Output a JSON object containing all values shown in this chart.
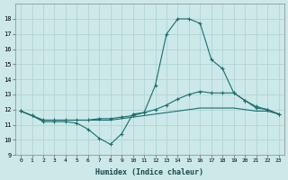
{
  "xlabel": "Humidex (Indice chaleur)",
  "background_color": "#cce8e8",
  "grid_color": "#b0d4d4",
  "line_color": "#1a6e6e",
  "x_values": [
    0,
    1,
    2,
    3,
    4,
    5,
    6,
    7,
    8,
    9,
    10,
    11,
    12,
    13,
    14,
    15,
    16,
    17,
    18,
    19,
    20,
    21,
    22,
    23
  ],
  "series1": [
    11.9,
    11.6,
    11.2,
    11.2,
    11.2,
    11.1,
    10.7,
    10.1,
    9.7,
    10.4,
    11.7,
    11.8,
    13.6,
    17.0,
    18.0,
    18.0,
    17.7,
    15.3,
    14.7,
    13.1,
    12.6,
    12.1,
    12.0,
    11.7
  ],
  "series2": [
    11.9,
    11.6,
    11.3,
    11.3,
    11.3,
    11.3,
    11.3,
    11.4,
    11.4,
    11.5,
    11.6,
    11.8,
    12.0,
    12.3,
    12.7,
    13.0,
    13.2,
    13.1,
    13.1,
    13.1,
    12.6,
    12.2,
    12.0,
    11.7
  ],
  "series3": [
    11.9,
    11.6,
    11.3,
    11.3,
    11.3,
    11.3,
    11.3,
    11.3,
    11.3,
    11.4,
    11.5,
    11.6,
    11.7,
    11.8,
    11.9,
    12.0,
    12.1,
    12.1,
    12.1,
    12.1,
    12.0,
    11.9,
    11.9,
    11.7
  ],
  "ylim": [
    9,
    19
  ],
  "xlim": [
    -0.5,
    23.5
  ],
  "yticks": [
    9,
    10,
    11,
    12,
    13,
    14,
    15,
    16,
    17,
    18
  ],
  "xticks": [
    0,
    1,
    2,
    3,
    4,
    5,
    6,
    7,
    8,
    9,
    10,
    11,
    12,
    13,
    14,
    15,
    16,
    17,
    18,
    19,
    20,
    21,
    22,
    23
  ]
}
